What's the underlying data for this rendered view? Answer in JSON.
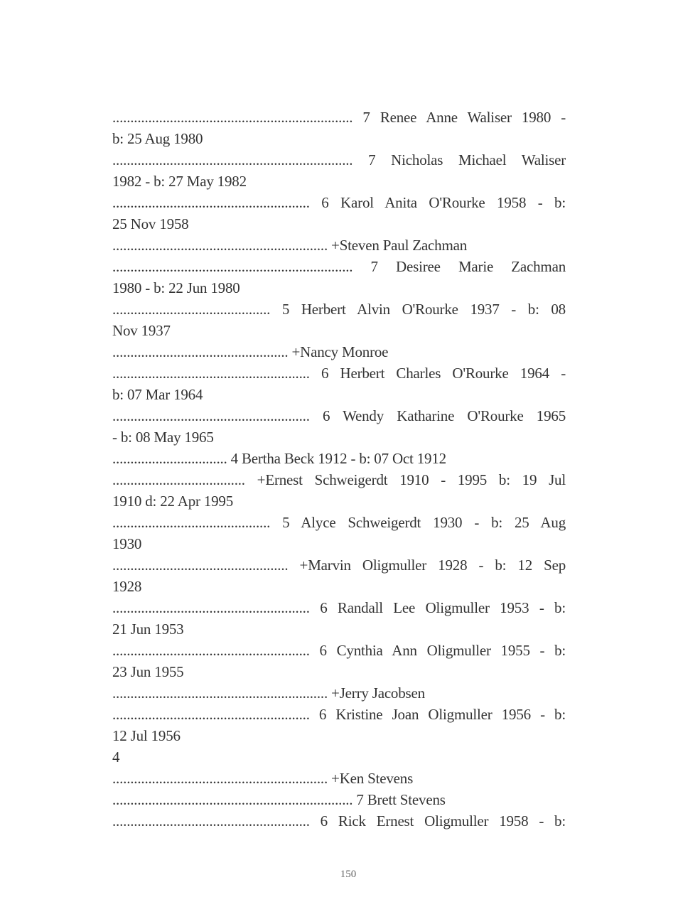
{
  "lines": [
    "................................................................... 7 Renee Anne Waliser 1980 -",
    "b: 25 Aug 1980",
    "................................................................... 7 Nicholas Michael Waliser",
    "1982 - b: 27 May 1982",
    "....................................................... 6 Karol Anita O'Rourke 1958 - b:",
    "25 Nov 1958",
    "............................................................ +Steven Paul Zachman",
    "................................................................... 7 Desiree Marie Zachman",
    "1980 - b: 22 Jun 1980",
    "............................................ 5 Herbert Alvin O'Rourke 1937 - b: 08",
    "Nov 1937",
    "................................................. +Nancy Monroe",
    "....................................................... 6 Herbert Charles O'Rourke 1964 -",
    "b: 07 Mar 1964",
    "....................................................... 6 Wendy Katharine O'Rourke 1965",
    "- b: 08 May 1965",
    "................................ 4 Bertha Beck 1912 - b: 07 Oct 1912",
    "..................................... +Ernest Schweigerdt 1910 - 1995 b: 19 Jul",
    "1910 d: 22 Apr 1995",
    "............................................ 5 Alyce Schweigerdt 1930 - b: 25 Aug",
    "1930",
    "................................................. +Marvin Oligmuller 1928 - b: 12 Sep",
    "1928",
    "....................................................... 6 Randall Lee Oligmuller 1953 - b:",
    "21 Jun 1953",
    "....................................................... 6 Cynthia Ann Oligmuller 1955 - b:",
    "23 Jun 1955",
    "............................................................ +Jerry Jacobsen",
    "....................................................... 6 Kristine Joan Oligmuller 1956 - b:",
    "12 Jul 1956",
    "4",
    "............................................................ +Ken Stevens",
    "................................................................... 7 Brett Stevens",
    "....................................................... 6 Rick Ernest Oligmuller 1958 - b:"
  ],
  "page_number": "150"
}
